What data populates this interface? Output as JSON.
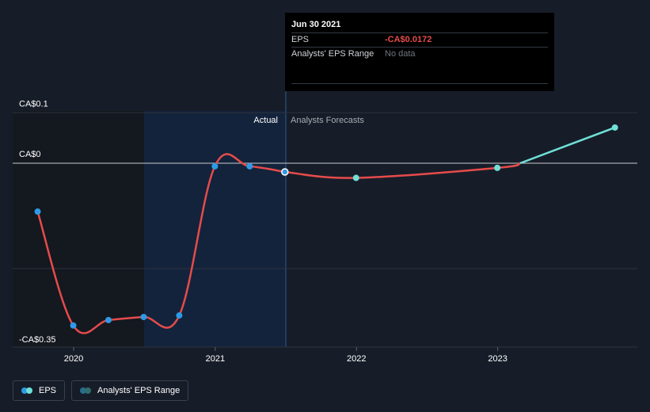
{
  "chart_data": {
    "type": "line",
    "y_ticks": [
      {
        "value": 0.1,
        "label": "CA$0.1"
      },
      {
        "value": 0,
        "label": "CA$0"
      },
      {
        "value": -0.35,
        "label": "-CA$0.35"
      }
    ],
    "x_ticks": [
      {
        "date": "2020-01-01",
        "label": "2020"
      },
      {
        "date": "2021-01-01",
        "label": "2021"
      },
      {
        "date": "2022-01-01",
        "label": "2022"
      },
      {
        "date": "2023-01-01",
        "label": "2023"
      }
    ],
    "sections": {
      "actual": "Actual",
      "forecast": "Analysts Forecasts"
    },
    "series": [
      {
        "name": "EPS",
        "color": "#e64b4b",
        "points": [
          {
            "date": "2019-09-30",
            "value": -0.0958
          },
          {
            "date": "2019-12-31",
            "value": -0.3214
          },
          {
            "date": "2020-03-31",
            "value": -0.3107
          },
          {
            "date": "2020-06-30",
            "value": -0.3046
          },
          {
            "date": "2020-09-30",
            "value": -0.3016
          },
          {
            "date": "2020-12-31",
            "value": -0.0061
          },
          {
            "date": "2021-03-31",
            "value": -0.0061
          },
          {
            "date": "2021-06-30",
            "value": -0.0172
          }
        ]
      },
      {
        "name": "EPS forecast",
        "color": "#e64b4b",
        "points": [
          {
            "date": "2021-06-30",
            "value": -0.0172
          },
          {
            "date": "2021-12-31",
            "value": -0.0291
          },
          {
            "date": "2022-12-31",
            "value": -0.0092
          },
          {
            "date": "2023-02-28",
            "value": 0.0
          },
          {
            "date": "2023-10-31",
            "value": 0.0707
          }
        ]
      }
    ],
    "ylim": [
      -0.35,
      0.1
    ]
  },
  "tooltip": {
    "date": "Jun 30 2021",
    "rows": [
      {
        "key": "EPS",
        "value": "-CA$0.0172"
      },
      {
        "key": "Analysts' EPS Range",
        "value": "No data"
      }
    ]
  },
  "legend": {
    "items": [
      {
        "label": "EPS",
        "colors": [
          "#2e9ae6",
          "#70e0d8"
        ]
      },
      {
        "label": "Analysts' EPS Range",
        "colors": [
          "#2a6d8e",
          "#2e6e6c"
        ]
      }
    ]
  }
}
